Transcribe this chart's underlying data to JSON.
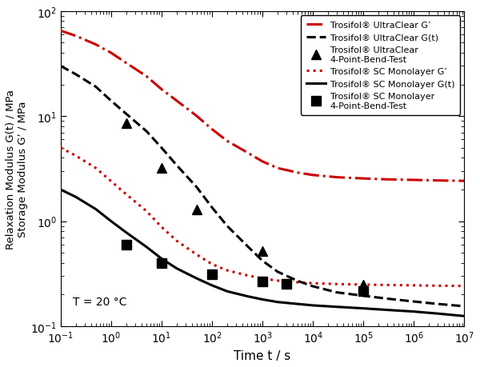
{
  "xlim": [
    0.1,
    10000000.0
  ],
  "ylim": [
    0.1,
    100.0
  ],
  "xlabel": "Time t / s",
  "ylabel": "Relaxation Modulus G(t) / MPa\nStorage Modulus G’ / MPa",
  "annotation": "T = 20 °C",
  "legend_entries": [
    "Trosifol® UltraClear G’",
    "Trosifol® UltraClear G(t)",
    "Trosifol® UltraClear\n4-Point-Bend-Test",
    "Trosifol® SC Monolayer G’",
    "Trosifol® SC Monolayer G(t)",
    "Trosifol® SC Monolayer\n4-Point-Bend-Test"
  ],
  "UC_Gprime_x": [
    0.1,
    0.2,
    0.5,
    1,
    2,
    5,
    10,
    20,
    50,
    100,
    200,
    500,
    1000,
    2000,
    5000,
    10000,
    30000,
    100000,
    300000,
    1000000,
    3000000,
    10000000
  ],
  "UC_Gprime_y": [
    65,
    58,
    48,
    40,
    32,
    24,
    18,
    14,
    10,
    7.5,
    5.8,
    4.5,
    3.7,
    3.2,
    2.9,
    2.75,
    2.62,
    2.55,
    2.5,
    2.47,
    2.44,
    2.42
  ],
  "UC_Gt_x": [
    0.1,
    0.2,
    0.5,
    1,
    2,
    5,
    10,
    20,
    50,
    100,
    200,
    500,
    1000,
    2000,
    5000,
    10000,
    30000,
    100000,
    300000,
    1000000,
    3000000,
    10000000
  ],
  "UC_Gt_y": [
    30,
    25,
    19,
    14,
    10.5,
    7.2,
    5.0,
    3.4,
    2.1,
    1.35,
    0.9,
    0.58,
    0.42,
    0.33,
    0.27,
    0.24,
    0.21,
    0.195,
    0.183,
    0.172,
    0.163,
    0.155
  ],
  "UC_bend_x": [
    2,
    10,
    50,
    1000,
    100000
  ],
  "UC_bend_y": [
    8.5,
    3.2,
    1.3,
    0.52,
    0.25
  ],
  "SC_Gprime_x": [
    0.1,
    0.2,
    0.5,
    1,
    2,
    5,
    10,
    20,
    50,
    100,
    200,
    500,
    1000,
    2000,
    5000,
    10000,
    30000,
    100000,
    300000,
    1000000,
    3000000,
    10000000
  ],
  "SC_Gprime_y": [
    5.0,
    4.2,
    3.2,
    2.4,
    1.8,
    1.25,
    0.88,
    0.65,
    0.48,
    0.39,
    0.34,
    0.305,
    0.285,
    0.272,
    0.262,
    0.257,
    0.252,
    0.249,
    0.247,
    0.245,
    0.243,
    0.242
  ],
  "SC_Gt_x": [
    0.1,
    0.2,
    0.5,
    1,
    2,
    5,
    10,
    20,
    50,
    100,
    200,
    500,
    1000,
    2000,
    5000,
    10000,
    30000,
    100000,
    300000,
    1000000,
    3000000,
    10000000
  ],
  "SC_Gt_y": [
    2.0,
    1.7,
    1.3,
    1.0,
    0.78,
    0.57,
    0.44,
    0.355,
    0.285,
    0.245,
    0.215,
    0.193,
    0.18,
    0.17,
    0.163,
    0.158,
    0.153,
    0.148,
    0.143,
    0.138,
    0.132,
    0.125
  ],
  "SC_bend_x": [
    2,
    10,
    100,
    1000,
    3000,
    100000
  ],
  "SC_bend_y": [
    0.6,
    0.4,
    0.31,
    0.265,
    0.255,
    0.215
  ],
  "color_red": "#cc0000",
  "color_black": "#000000",
  "background_color": "#ffffff"
}
